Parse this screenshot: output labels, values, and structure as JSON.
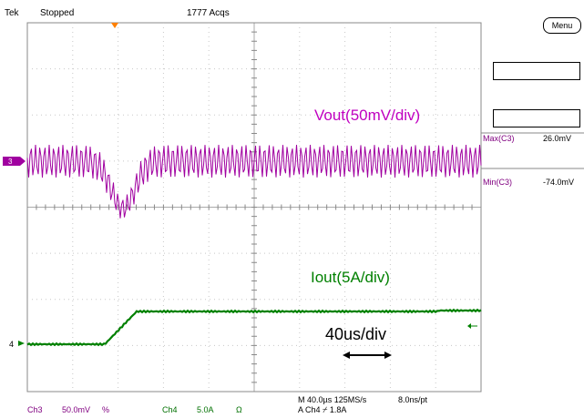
{
  "status": {
    "brand": "Tek",
    "state": "Stopped",
    "acqs": "1777 Acqs"
  },
  "traces": {
    "vout_label": "Vout(50mV/div)",
    "iout_label": "Iout(5A/div)",
    "timebase_label": "40us/div",
    "ch3_marker": "3",
    "ch4_marker": "4",
    "ch3_color": "#a000a0",
    "ch4_color": "#008000"
  },
  "side": {
    "menu_label": "Menu",
    "max_label": "Max(C3)",
    "max_value": "26.0mV",
    "min_label": "Min(C3)",
    "min_value": "-74.0mV"
  },
  "footer": {
    "ch3_name": "Ch3",
    "ch3_scale": "50.0mV",
    "ch3_unit": "%",
    "ch4_name": "Ch4",
    "ch4_scale": "5.0A",
    "ch4_unit": "Ω",
    "horiz": "M 40.0µs 125MS/s",
    "record": "8.0ns/pt",
    "trigger": "A Ch4 ⌿ 1.8A"
  }
}
